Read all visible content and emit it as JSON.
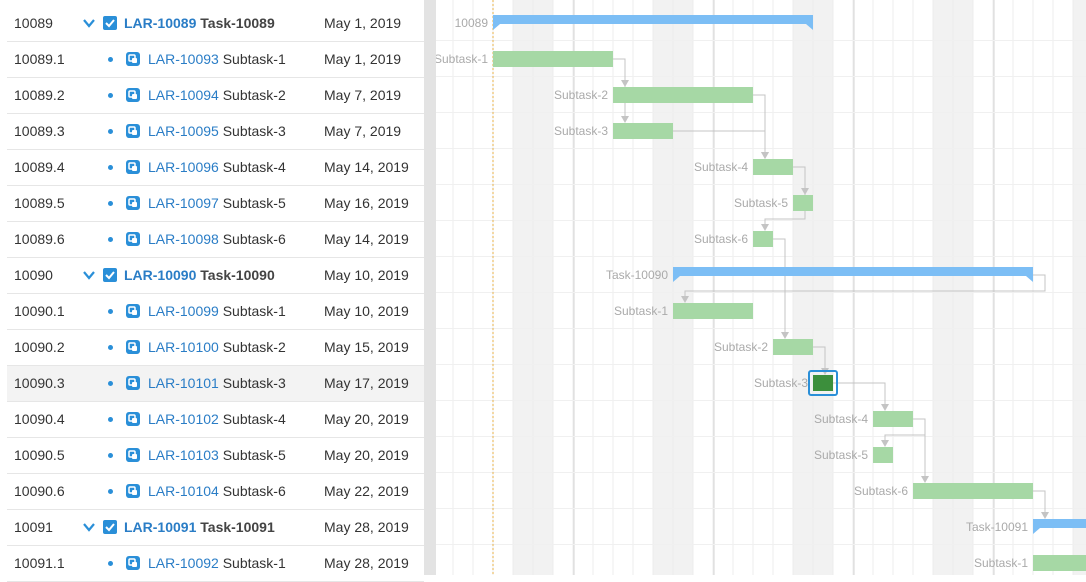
{
  "rows": [
    {
      "id": "10089",
      "key": "LAR-10089",
      "name": "Task-10089",
      "date": "May 1, 2019",
      "type": "task",
      "label": "10089",
      "bar": {
        "start": 0,
        "end": 16
      }
    },
    {
      "id": "10089.1",
      "key": "LAR-10093",
      "name": "Subtask-1",
      "date": "May 1, 2019",
      "type": "subtask",
      "label": "Subtask-1",
      "bar": {
        "start": 0,
        "end": 6
      }
    },
    {
      "id": "10089.2",
      "key": "LAR-10094",
      "name": "Subtask-2",
      "date": "May 7, 2019",
      "type": "subtask",
      "label": "Subtask-2",
      "bar": {
        "start": 6,
        "end": 13
      }
    },
    {
      "id": "10089.3",
      "key": "LAR-10095",
      "name": "Subtask-3",
      "date": "May 7, 2019",
      "type": "subtask",
      "label": "Subtask-3",
      "bar": {
        "start": 6,
        "end": 9
      }
    },
    {
      "id": "10089.4",
      "key": "LAR-10096",
      "name": "Subtask-4",
      "date": "May 14, 2019",
      "type": "subtask",
      "label": "Subtask-4",
      "bar": {
        "start": 13,
        "end": 15
      }
    },
    {
      "id": "10089.5",
      "key": "LAR-10097",
      "name": "Subtask-5",
      "date": "May 16, 2019",
      "type": "subtask",
      "label": "Subtask-5",
      "bar": {
        "start": 15,
        "end": 16
      }
    },
    {
      "id": "10089.6",
      "key": "LAR-10098",
      "name": "Subtask-6",
      "date": "May 14, 2019",
      "type": "subtask",
      "label": "Subtask-6",
      "bar": {
        "start": 13,
        "end": 14
      }
    },
    {
      "id": "10090",
      "key": "LAR-10090",
      "name": "Task-10090",
      "date": "May 10, 2019",
      "type": "task",
      "label": "Task-10090",
      "bar": {
        "start": 9,
        "end": 27
      }
    },
    {
      "id": "10090.1",
      "key": "LAR-10099",
      "name": "Subtask-1",
      "date": "May 10, 2019",
      "type": "subtask",
      "label": "Subtask-1",
      "bar": {
        "start": 9,
        "end": 13
      }
    },
    {
      "id": "10090.2",
      "key": "LAR-10100",
      "name": "Subtask-2",
      "date": "May 15, 2019",
      "type": "subtask",
      "label": "Subtask-2",
      "bar": {
        "start": 14,
        "end": 16
      }
    },
    {
      "id": "10090.3",
      "key": "LAR-10101",
      "name": "Subtask-3",
      "date": "May 17, 2019",
      "type": "subtask",
      "label": "Subtask-3",
      "bar": {
        "start": 16,
        "end": 17
      },
      "selected": true
    },
    {
      "id": "10090.4",
      "key": "LAR-10102",
      "name": "Subtask-4",
      "date": "May 20, 2019",
      "type": "subtask",
      "label": "Subtask-4",
      "bar": {
        "start": 19,
        "end": 21
      }
    },
    {
      "id": "10090.5",
      "key": "LAR-10103",
      "name": "Subtask-5",
      "date": "May 20, 2019",
      "type": "subtask",
      "label": "Subtask-5",
      "bar": {
        "start": 19,
        "end": 20
      }
    },
    {
      "id": "10090.6",
      "key": "LAR-10104",
      "name": "Subtask-6",
      "date": "May 22, 2019",
      "type": "subtask",
      "label": "Subtask-6",
      "bar": {
        "start": 21,
        "end": 27
      }
    },
    {
      "id": "10091",
      "key": "LAR-10091",
      "name": "Task-10091",
      "date": "May 28, 2019",
      "type": "task",
      "label": "Task-10091",
      "bar": {
        "start": 27,
        "end": 31
      }
    },
    {
      "id": "10091.1",
      "key": "LAR-10092",
      "name": "Subtask-1",
      "date": "May 28, 2019",
      "type": "subtask",
      "label": "Subtask-1",
      "bar": {
        "start": 27,
        "end": 31
      }
    }
  ],
  "links": [
    [
      1,
      2
    ],
    [
      1,
      3
    ],
    [
      2,
      4
    ],
    [
      3,
      4
    ],
    [
      4,
      5
    ],
    [
      4,
      6
    ],
    [
      6,
      6
    ],
    [
      6,
      9
    ],
    [
      7,
      8
    ],
    [
      9,
      10
    ],
    [
      10,
      11
    ],
    [
      11,
      12
    ],
    [
      11,
      13
    ],
    [
      13,
      14
    ]
  ],
  "colors": {
    "task_bar": "#7cbef5",
    "subtask_bar": "#a6d8a5",
    "selected_bar": "#3c8f3c",
    "selected_outline": "#2a8fd8",
    "link": "#c4c4c4",
    "today_line": "#e7b24a",
    "weekend": "#f2f2f2",
    "grid": "#ececec",
    "accent": "#2a8fd8"
  },
  "icons": {
    "task_expand": "chevron-down-icon",
    "task_type": "checkbox-icon",
    "subtask_type": "subtask-icon",
    "splitter_left": "triangle-left-icon",
    "splitter_right": "triangle-right-icon"
  }
}
